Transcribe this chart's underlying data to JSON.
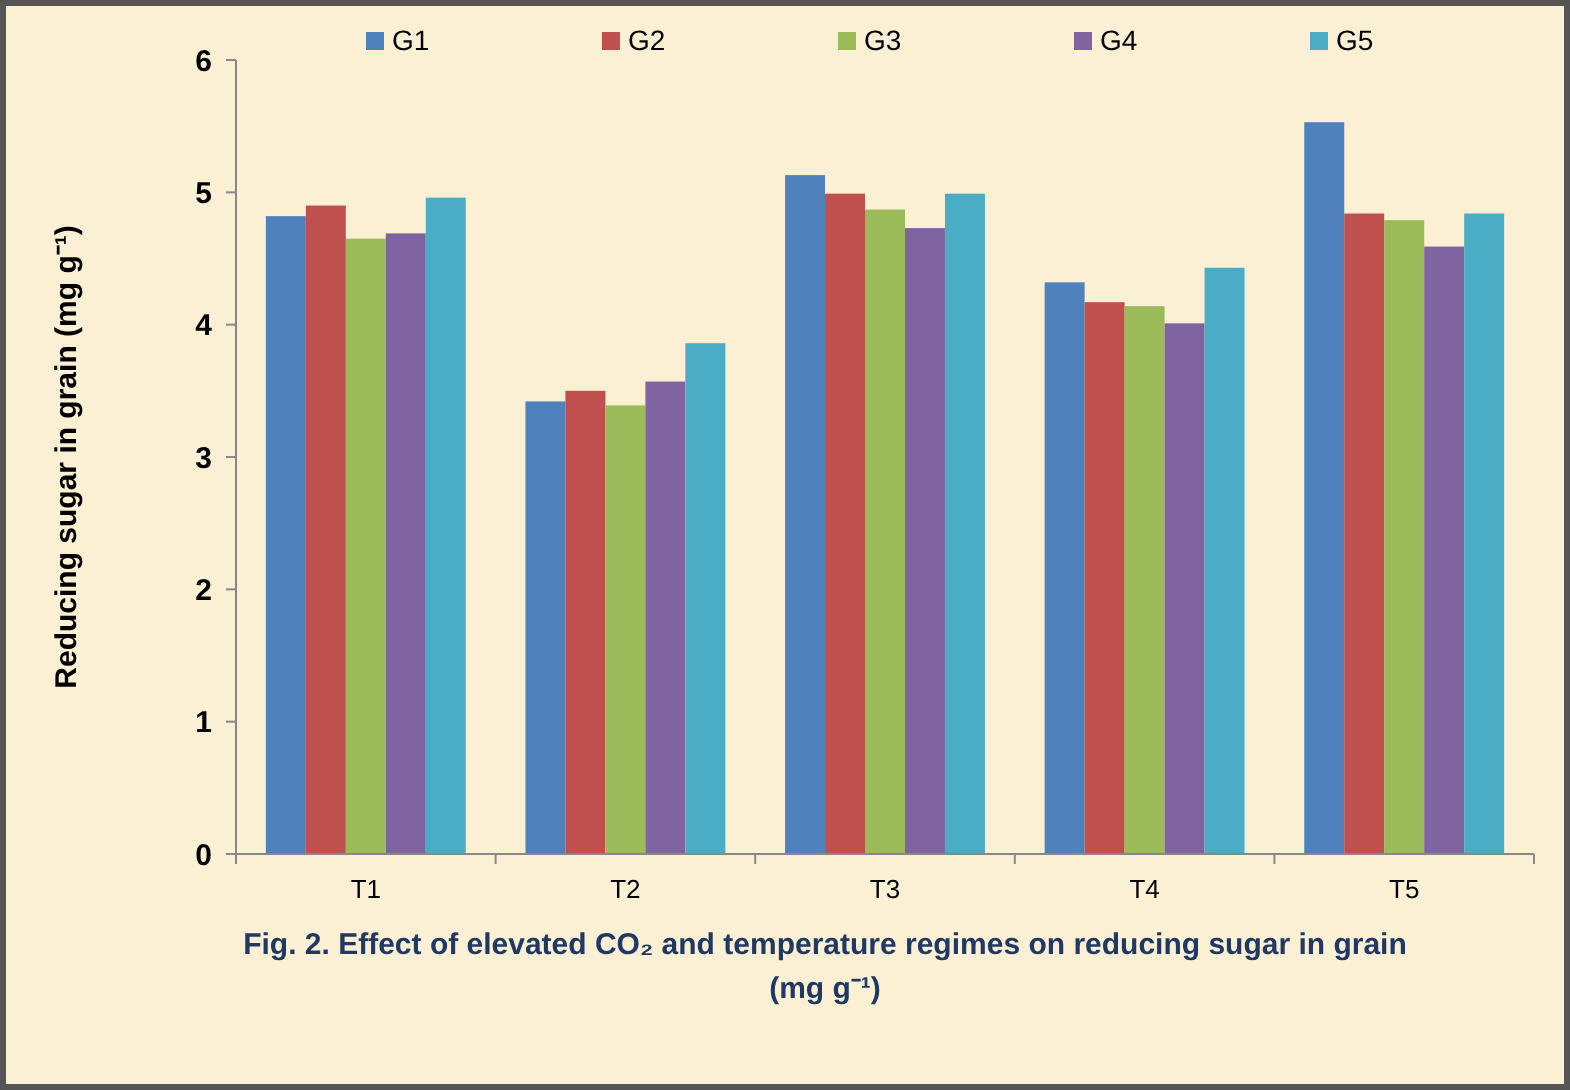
{
  "chart_data": {
    "type": "bar",
    "title": "Fig. 2. Effect of elevated CO₂ and temperature regimes on reducing sugar in grain (mg g⁻¹)",
    "ylabel": "Reducing sugar in grain (mg g⁻¹)",
    "categories": [
      "T1",
      "T2",
      "T3",
      "T4",
      "T5"
    ],
    "series": [
      {
        "name": "G1",
        "color": "#4f81bd",
        "values": [
          4.82,
          3.42,
          5.13,
          4.32,
          5.53
        ]
      },
      {
        "name": "G2",
        "color": "#c0504d",
        "values": [
          4.9,
          3.5,
          4.99,
          4.17,
          4.84
        ]
      },
      {
        "name": "G3",
        "color": "#9bbb59",
        "values": [
          4.65,
          3.39,
          4.87,
          4.14,
          4.79
        ]
      },
      {
        "name": "G4",
        "color": "#8064a2",
        "values": [
          4.69,
          3.57,
          4.73,
          4.01,
          4.59
        ]
      },
      {
        "name": "G5",
        "color": "#4bacc6",
        "values": [
          4.96,
          3.86,
          4.99,
          4.43,
          4.84
        ]
      }
    ],
    "ylim": [
      0,
      6
    ],
    "yticks": [
      0,
      1,
      2,
      3,
      4,
      5,
      6
    ],
    "grid": false,
    "legend": "top"
  }
}
